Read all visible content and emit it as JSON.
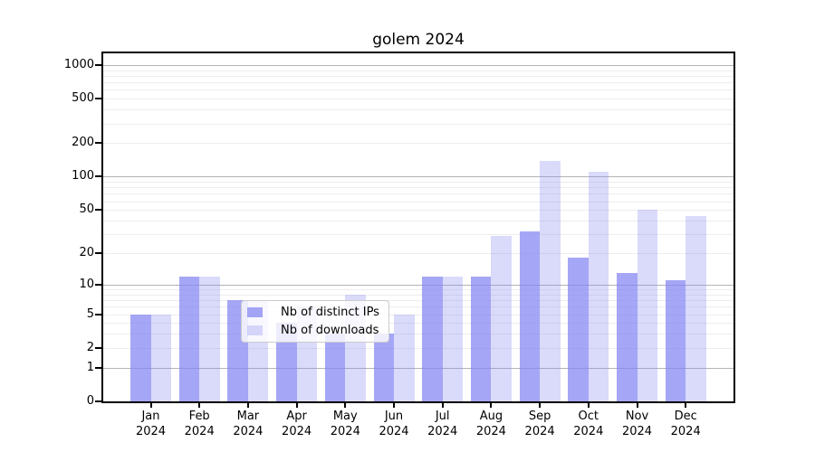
{
  "title": "golem 2024",
  "chart_data": {
    "type": "bar",
    "title": "golem 2024",
    "x_categories": [
      "Jan",
      "Feb",
      "Mar",
      "Apr",
      "May",
      "Jun",
      "Jul",
      "Aug",
      "Sep",
      "Oct",
      "Nov",
      "Dec"
    ],
    "x_year": "2024",
    "series": [
      {
        "name": "Nb of distinct IPs",
        "color": "rgba(132,132,242,0.72)",
        "values": [
          5,
          12,
          7,
          4,
          3,
          3,
          12,
          12,
          32,
          18,
          13,
          11
        ]
      },
      {
        "name": "Nb of downloads",
        "color": "rgba(132,132,242,0.30)",
        "values": [
          5,
          12,
          7,
          6,
          8,
          5,
          12,
          29,
          140,
          110,
          50,
          44
        ]
      }
    ],
    "y_axis": {
      "scale": "log1p",
      "tick_values": [
        0,
        1,
        2,
        5,
        10,
        20,
        50,
        100,
        200,
        500,
        1000
      ],
      "major_grid_values": [
        1,
        10,
        100,
        1000
      ],
      "minor_grid_values": [
        2,
        3,
        4,
        5,
        6,
        7,
        8,
        9,
        20,
        30,
        40,
        50,
        60,
        70,
        80,
        90,
        200,
        300,
        400,
        500,
        600,
        700,
        800,
        900
      ]
    },
    "legend": {
      "position": "lower-center"
    },
    "colors": {
      "bar_dark": "rgba(132,132,242,0.72)",
      "bar_light": "rgba(132,132,242,0.30)",
      "major_grid": "#b3b3b3",
      "minor_grid": "#ededed",
      "axis": "#000000",
      "background": "#ffffff"
    }
  }
}
